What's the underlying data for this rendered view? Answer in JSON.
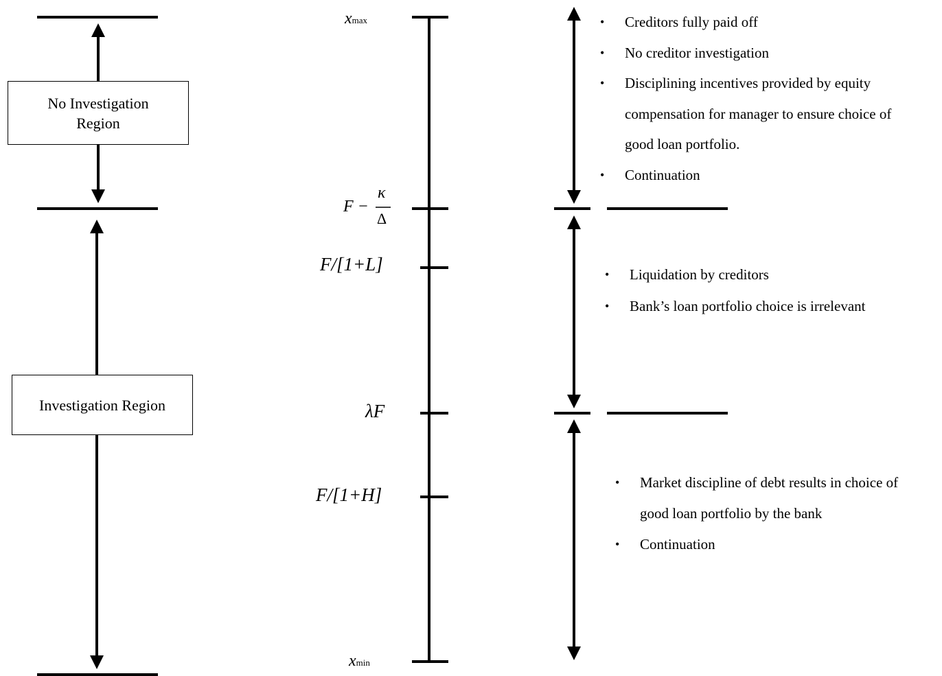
{
  "regions": {
    "no_investigation": "No Investigation Region",
    "investigation": "Investigation Region"
  },
  "axis_labels": {
    "x_max_base": "x",
    "x_max_sub": "max",
    "f_minus_kappa_lhs": "F −",
    "kappa": "κ",
    "delta": "Δ",
    "f_over_1_plus_l": "F/[1+L]",
    "lambda_f": "λF",
    "f_over_1_plus_h": "F/[1+H]",
    "x_min_base": "x",
    "x_min_sub": "min"
  },
  "top_bullets": [
    "Creditors fully paid off",
    "No creditor investigation",
    "Disciplining incentives provided by equity compensation for manager to ensure choice of good loan portfolio.",
    "Continuation"
  ],
  "middle_bullets": [
    "Liquidation by creditors",
    "Bank’s loan portfolio choice is irrelevant"
  ],
  "bottom_bullets": [
    "Market discipline of debt results in choice of good loan portfolio by the bank",
    "Continuation"
  ]
}
